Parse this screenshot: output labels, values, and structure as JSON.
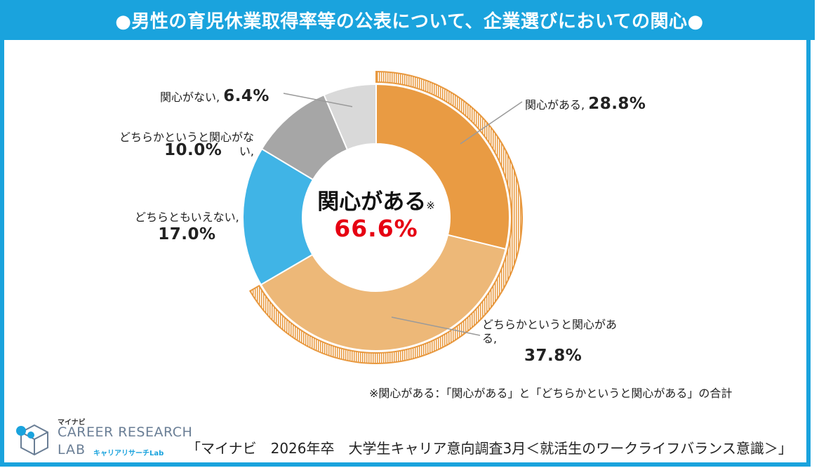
{
  "title": "●男性の育児休業取得率等の公表について、企業選びにおいての関心●",
  "chart_data": {
    "type": "pie",
    "style": "donut",
    "categories": [
      "関心がある",
      "どちらかというと関心がある",
      "どちらともいえない",
      "どちらかというと関心がない",
      "関心がない"
    ],
    "values": [
      28.8,
      37.8,
      17.0,
      10.0,
      6.4
    ],
    "unit": "%",
    "colors": [
      "#e99b43",
      "#edb878",
      "#40b4e6",
      "#a6a6a6",
      "#d9d9d9"
    ],
    "highlight": {
      "categories": [
        "関心がある",
        "どちらかというと関心がある"
      ],
      "color": "#e8983e"
    },
    "labels": [
      {
        "name": "関心がある,",
        "value": "28.8%"
      },
      {
        "name": "どちらかというと関心がある,",
        "value": "37.8%"
      },
      {
        "name": "どちらともいえない,",
        "value": "17.0%"
      },
      {
        "name": "どちらかというと関心がない,",
        "value": "10.0%"
      },
      {
        "name": "関心がない,",
        "value": "6.4%"
      }
    ],
    "center": {
      "title": "関心がある",
      "mark": "※",
      "value": "66.6%"
    }
  },
  "footnote": "※関心がある：「関心がある」と「どちらかというと関心がある」の合計",
  "source": "「マイナビ　2026年卒　大学生キャリア意向調査3月＜就活生のワークライフバランス意識＞」",
  "logo": {
    "brand": "マイナビ",
    "line1": "CAREER RESEARCH",
    "line2": "LAB",
    "sub": "キャリアリサーチLab"
  }
}
